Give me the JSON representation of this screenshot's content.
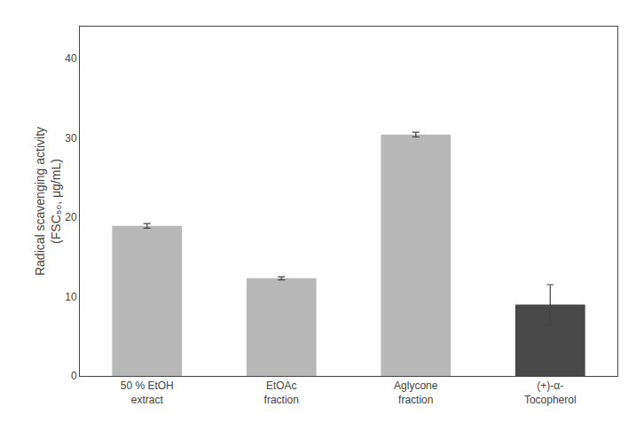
{
  "chart_data": {
    "type": "bar",
    "ylabel": "Radical scavenging activity\n(FSC₅₀, μg/mL)",
    "categories": [
      "50 % EtOH\nextract",
      "EtOAc\nfraction",
      "Aglycone\nfraction",
      "(+)-α-\nTocopherol"
    ],
    "values": [
      18.9,
      12.3,
      30.4,
      9.0
    ],
    "errors": [
      0.3,
      0.2,
      0.3,
      2.5
    ],
    "colors": [
      "#b8b8b8",
      "#b8b8b8",
      "#b8b8b8",
      "#484848"
    ],
    "ylim": [
      0,
      44
    ],
    "yticks": [
      0,
      10,
      20,
      30,
      40
    ],
    "grid": false
  }
}
